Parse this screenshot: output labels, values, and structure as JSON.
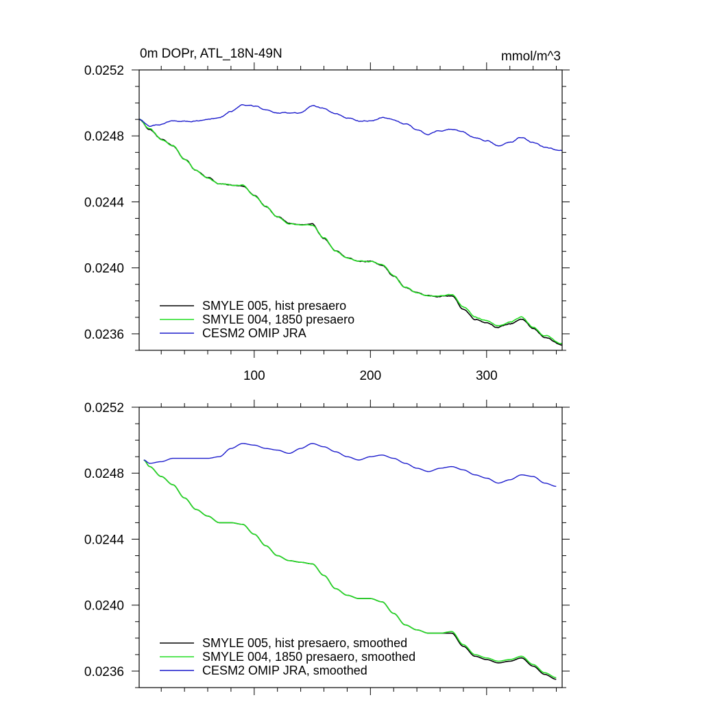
{
  "chart_data": [
    {
      "type": "line",
      "title": "0m DOPr, ATL_18N-49N",
      "units": "mmol/m^3",
      "xlim": [
        1,
        365
      ],
      "ylim": [
        0.0235,
        0.0252
      ],
      "x_tick_labels": [
        "100",
        "200",
        "300"
      ],
      "x_tick_values": [
        100,
        200,
        300
      ],
      "y_tick_labels": [
        "0.0236",
        "0.0240",
        "0.0244",
        "0.0248",
        "0.0252"
      ],
      "y_tick_values": [
        0.0236,
        0.024,
        0.0244,
        0.0248,
        0.0252
      ],
      "grid": false,
      "legend_position": "bottom-left",
      "noisy": true,
      "series": [
        {
          "name": "SMYLE 005, hist presaero",
          "color": "#000000",
          "x": [
            1,
            10,
            20,
            30,
            40,
            50,
            60,
            70,
            80,
            90,
            100,
            110,
            120,
            130,
            140,
            150,
            160,
            170,
            180,
            190,
            200,
            210,
            220,
            230,
            240,
            250,
            260,
            270,
            280,
            290,
            300,
            310,
            320,
            330,
            340,
            350,
            365
          ],
          "y": [
            0.0249,
            0.02484,
            0.02478,
            0.02474,
            0.02466,
            0.02459,
            0.02455,
            0.02451,
            0.0245,
            0.0245,
            0.02444,
            0.02437,
            0.02431,
            0.02427,
            0.02426,
            0.02426,
            0.02418,
            0.0241,
            0.02406,
            0.02404,
            0.02404,
            0.02402,
            0.02395,
            0.02388,
            0.02385,
            0.02383,
            0.02383,
            0.02383,
            0.02375,
            0.02369,
            0.02367,
            0.02364,
            0.02366,
            0.02369,
            0.02363,
            0.02358,
            0.02353
          ]
        },
        {
          "name": "SMYLE 004, 1850 presaero",
          "color": "#22dd22",
          "x": [
            1,
            10,
            20,
            30,
            40,
            50,
            60,
            70,
            80,
            90,
            100,
            110,
            120,
            130,
            140,
            150,
            160,
            170,
            180,
            190,
            200,
            210,
            220,
            230,
            240,
            250,
            260,
            270,
            280,
            290,
            300,
            310,
            320,
            330,
            340,
            350,
            365
          ],
          "y": [
            0.0249,
            0.02484,
            0.02478,
            0.02474,
            0.02466,
            0.02459,
            0.02455,
            0.02451,
            0.0245,
            0.0245,
            0.02444,
            0.02437,
            0.02431,
            0.02427,
            0.02426,
            0.02426,
            0.02418,
            0.0241,
            0.02406,
            0.02404,
            0.02404,
            0.02402,
            0.02395,
            0.02388,
            0.02385,
            0.02383,
            0.02383,
            0.02384,
            0.02376,
            0.0237,
            0.02368,
            0.02365,
            0.02367,
            0.0237,
            0.02364,
            0.02359,
            0.02354
          ]
        },
        {
          "name": "CESM2 OMIP JRA",
          "color": "#1a1acc",
          "x": [
            1,
            10,
            20,
            30,
            40,
            50,
            60,
            70,
            80,
            90,
            100,
            110,
            120,
            130,
            140,
            150,
            160,
            170,
            180,
            190,
            200,
            210,
            220,
            230,
            240,
            250,
            260,
            270,
            280,
            290,
            300,
            310,
            320,
            330,
            340,
            350,
            365
          ],
          "y": [
            0.0249,
            0.02486,
            0.02487,
            0.02489,
            0.02489,
            0.02489,
            0.0249,
            0.02491,
            0.02495,
            0.02499,
            0.02498,
            0.02496,
            0.02494,
            0.02494,
            0.02494,
            0.02498,
            0.02497,
            0.02494,
            0.02491,
            0.02489,
            0.02489,
            0.02491,
            0.0249,
            0.02487,
            0.02484,
            0.02481,
            0.02483,
            0.02484,
            0.02482,
            0.02479,
            0.02477,
            0.02474,
            0.02476,
            0.02479,
            0.02476,
            0.02473,
            0.02471
          ]
        }
      ]
    },
    {
      "type": "line",
      "title": "",
      "xlim": [
        1,
        365
      ],
      "ylim": [
        0.0235,
        0.0252
      ],
      "x_tick_values": [
        100,
        200,
        300
      ],
      "y_tick_labels": [
        "0.0236",
        "0.0240",
        "0.0244",
        "0.0248",
        "0.0252"
      ],
      "y_tick_values": [
        0.0236,
        0.024,
        0.0244,
        0.0248,
        0.0252
      ],
      "grid": false,
      "legend_position": "bottom-left",
      "noisy": false,
      "series": [
        {
          "name": "SMYLE 005, hist presaero, smoothed",
          "color": "#000000",
          "x": [
            5,
            10,
            20,
            30,
            40,
            50,
            60,
            70,
            80,
            90,
            100,
            110,
            120,
            130,
            140,
            150,
            160,
            170,
            180,
            190,
            200,
            210,
            220,
            230,
            240,
            250,
            260,
            270,
            280,
            290,
            300,
            310,
            320,
            330,
            340,
            350,
            360
          ],
          "y": [
            0.02488,
            0.02484,
            0.02478,
            0.02473,
            0.02465,
            0.02458,
            0.02454,
            0.0245,
            0.0245,
            0.02449,
            0.02443,
            0.02436,
            0.0243,
            0.02427,
            0.02426,
            0.02425,
            0.02418,
            0.0241,
            0.02406,
            0.02404,
            0.02404,
            0.02402,
            0.02395,
            0.02388,
            0.02385,
            0.02383,
            0.02383,
            0.02383,
            0.02375,
            0.02369,
            0.02367,
            0.02365,
            0.02366,
            0.02368,
            0.02363,
            0.02358,
            0.02355
          ]
        },
        {
          "name": "SMYLE 004, 1850 presaero, smoothed",
          "color": "#22dd22",
          "x": [
            5,
            10,
            20,
            30,
            40,
            50,
            60,
            70,
            80,
            90,
            100,
            110,
            120,
            130,
            140,
            150,
            160,
            170,
            180,
            190,
            200,
            210,
            220,
            230,
            240,
            250,
            260,
            270,
            280,
            290,
            300,
            310,
            320,
            330,
            340,
            350,
            360
          ],
          "y": [
            0.02488,
            0.02484,
            0.02478,
            0.02473,
            0.02465,
            0.02458,
            0.02454,
            0.0245,
            0.0245,
            0.02449,
            0.02443,
            0.02436,
            0.0243,
            0.02427,
            0.02426,
            0.02425,
            0.02418,
            0.0241,
            0.02406,
            0.02404,
            0.02404,
            0.02402,
            0.02395,
            0.02388,
            0.02385,
            0.02383,
            0.02383,
            0.02384,
            0.02376,
            0.0237,
            0.02368,
            0.02366,
            0.02367,
            0.02369,
            0.02364,
            0.02359,
            0.02356
          ]
        },
        {
          "name": "CESM2 OMIP JRA, smoothed",
          "color": "#1a1acc",
          "x": [
            5,
            10,
            20,
            30,
            40,
            50,
            60,
            70,
            80,
            90,
            100,
            110,
            120,
            130,
            140,
            150,
            160,
            170,
            180,
            190,
            200,
            210,
            220,
            230,
            240,
            250,
            260,
            270,
            280,
            290,
            300,
            310,
            320,
            330,
            340,
            350,
            360
          ],
          "y": [
            0.02488,
            0.02486,
            0.02487,
            0.02489,
            0.02489,
            0.02489,
            0.02489,
            0.0249,
            0.02495,
            0.02498,
            0.02497,
            0.02495,
            0.02494,
            0.02492,
            0.02495,
            0.02498,
            0.02496,
            0.02493,
            0.0249,
            0.02488,
            0.0249,
            0.02491,
            0.02489,
            0.02486,
            0.02483,
            0.02481,
            0.02483,
            0.02484,
            0.02482,
            0.02479,
            0.02477,
            0.02474,
            0.02476,
            0.02479,
            0.02478,
            0.02474,
            0.02472
          ]
        }
      ]
    }
  ]
}
